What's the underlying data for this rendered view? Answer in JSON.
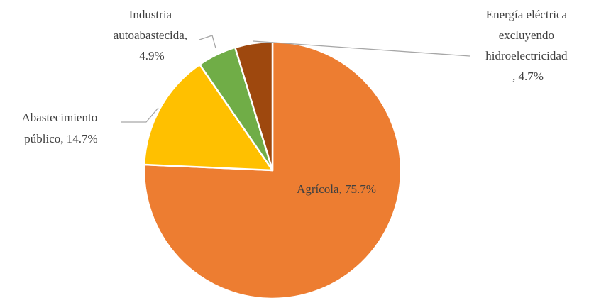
{
  "chart_data": {
    "type": "pie",
    "title": "",
    "slices": [
      {
        "name": "Agrícola",
        "value": 75.7,
        "label": "Agrícola, 75.7%",
        "color": "#ED7D31"
      },
      {
        "name": "Abastecimiento público",
        "value": 14.7,
        "label": "Abastecimiento público, 14.7%",
        "color": "#FFC000"
      },
      {
        "name": "Industria autoabastecida",
        "value": 4.9,
        "label": "Industria autoabastecida, 4.9%",
        "color": "#70AD47"
      },
      {
        "name": "Energía eléctrica excluyendo hidroelectricidad",
        "value": 4.7,
        "label": "Energía eléctrica excluyendo hidroelectricidad , 4.7%",
        "color": "#9E480E"
      }
    ],
    "label_lines": {
      "agricola": [
        "Agrícola, 75.7%"
      ],
      "abastecimiento": [
        "Abastecimiento",
        "público, 14.7%"
      ],
      "industria": [
        "Industria",
        "autoabastecida,",
        "4.9%"
      ],
      "energia": [
        "Energía eléctrica",
        "excluyendo",
        "hidroelectricidad",
        ", 4.7%"
      ]
    },
    "legend": "none"
  }
}
